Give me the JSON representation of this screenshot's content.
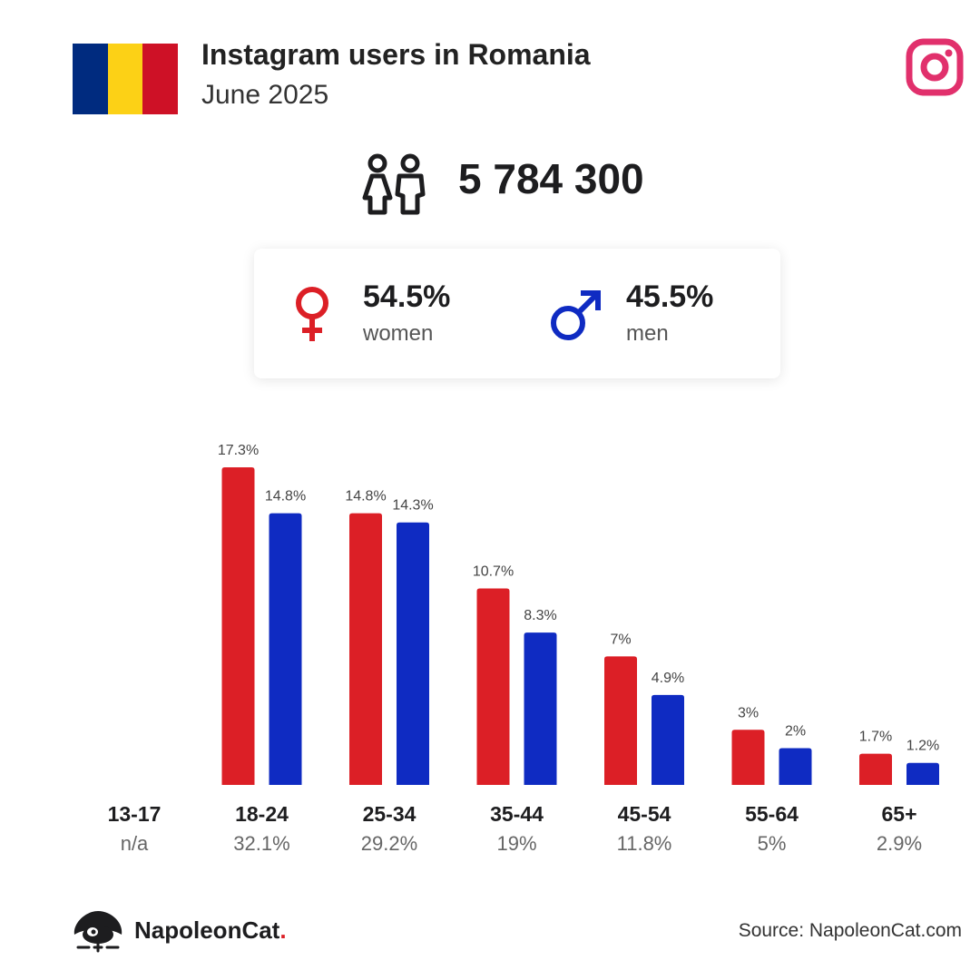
{
  "header": {
    "title": "Instagram users in Romania",
    "subtitle": "June 2025",
    "flag_colors": [
      "#002b7f",
      "#fcd116",
      "#ce1126"
    ],
    "logo_icon": "instagram-icon"
  },
  "total": {
    "icon": "users-icon",
    "value": "5 784 300"
  },
  "gender": {
    "female": {
      "icon": "female-icon",
      "pct": "54.5%",
      "label": "women",
      "color": "#dc1f26"
    },
    "male": {
      "icon": "male-icon",
      "pct": "45.5%",
      "label": "men",
      "color": "#0f2bc2"
    }
  },
  "chart_data": {
    "type": "bar",
    "categories": [
      "13-17",
      "18-24",
      "25-34",
      "35-44",
      "45-54",
      "55-64",
      "65+"
    ],
    "category_totals": [
      "n/a",
      "32.1%",
      "29.2%",
      "19%",
      "11.8%",
      "5%",
      "2.9%"
    ],
    "series": [
      {
        "name": "women",
        "color": "#dc1f26",
        "values": [
          null,
          17.3,
          14.8,
          10.7,
          7,
          3,
          1.7
        ],
        "labels": [
          "",
          "17.3%",
          "14.8%",
          "10.7%",
          "7%",
          "3%",
          "1.7%"
        ]
      },
      {
        "name": "men",
        "color": "#0f2bc2",
        "values": [
          null,
          14.8,
          14.3,
          8.3,
          4.9,
          2,
          1.2
        ],
        "labels": [
          "",
          "14.8%",
          "14.3%",
          "8.3%",
          "4.9%",
          "2%",
          "1.2%"
        ]
      }
    ],
    "ylim": [
      0,
      17.3
    ]
  },
  "footer": {
    "brand": "NapoleonCat",
    "brand_dot": ".",
    "source": "Source: NapoleonCat.com"
  }
}
